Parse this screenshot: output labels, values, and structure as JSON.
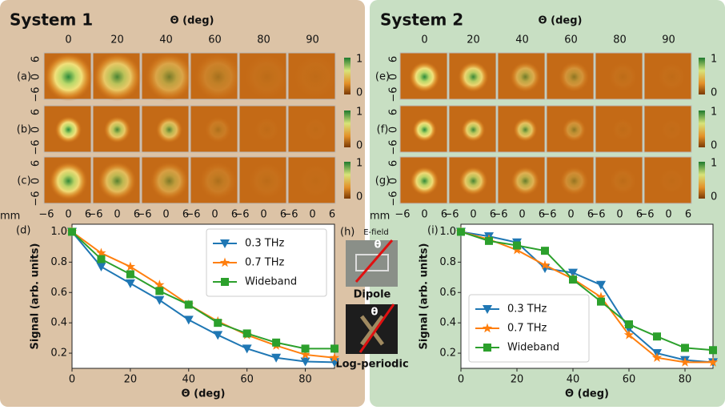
{
  "chart_data": [
    {
      "type": "line",
      "label": "(d)",
      "xlabel": "Θ (deg)",
      "ylabel": "Signal (arb. units)",
      "xlim": [
        0,
        90
      ],
      "ylim": [
        0.1,
        1.05
      ],
      "xticks": [
        0,
        20,
        40,
        60,
        80
      ],
      "yticks": [
        0.2,
        0.4,
        0.6,
        0.8,
        {
          "value": 1,
          "label": "1.0"
        }
      ],
      "legend": "upper right",
      "x": [
        0,
        10,
        20,
        30,
        40,
        50,
        60,
        70,
        80,
        90
      ],
      "series": [
        {
          "name": "0.3 THz",
          "color": "#1f77b4",
          "marker": "v",
          "values": [
            1.0,
            0.77,
            0.66,
            0.55,
            0.42,
            0.32,
            0.23,
            0.17,
            0.145,
            0.14
          ]
        },
        {
          "name": "0.7 THz",
          "color": "#ff7f0e",
          "marker": "*",
          "values": [
            1.0,
            0.86,
            0.77,
            0.65,
            0.52,
            0.41,
            0.32,
            0.25,
            0.19,
            0.17
          ]
        },
        {
          "name": "Wideband",
          "color": "#2ca02c",
          "marker": "s",
          "values": [
            1.0,
            0.82,
            0.72,
            0.61,
            0.52,
            0.4,
            0.33,
            0.27,
            0.23,
            0.23
          ]
        }
      ]
    },
    {
      "type": "line",
      "label": "(i)",
      "xlabel": "Θ (deg)",
      "ylabel": "Signal (arb. units)",
      "xlim": [
        0,
        90
      ],
      "ylim": [
        0.1,
        1.05
      ],
      "xticks": [
        0,
        20,
        40,
        60,
        80
      ],
      "yticks": [
        0.2,
        0.4,
        0.6,
        0.8,
        {
          "value": 1,
          "label": "1.0"
        }
      ],
      "legend": "lower left",
      "x": [
        0,
        10,
        20,
        30,
        40,
        50,
        60,
        70,
        80,
        90
      ],
      "series": [
        {
          "name": "0.3 THz",
          "color": "#1f77b4",
          "marker": "v",
          "values": [
            1.0,
            0.97,
            0.93,
            0.76,
            0.73,
            0.65,
            0.36,
            0.2,
            0.155,
            0.14
          ]
        },
        {
          "name": "0.7 THz",
          "color": "#ff7f0e",
          "marker": "*",
          "values": [
            1.0,
            0.95,
            0.88,
            0.78,
            0.69,
            0.57,
            0.32,
            0.17,
            0.14,
            0.14
          ]
        },
        {
          "name": "Wideband",
          "color": "#2ca02c",
          "marker": "s",
          "values": [
            1.0,
            0.94,
            0.91,
            0.875,
            0.685,
            0.54,
            0.39,
            0.31,
            0.235,
            0.22
          ]
        }
      ]
    }
  ],
  "systems": [
    {
      "title": "System 1",
      "axis_title": "Θ (deg)",
      "angles": [
        "0",
        "20",
        "40",
        "60",
        "80",
        "90"
      ],
      "rows": [
        "(a)",
        "(b)",
        "(c)"
      ]
    },
    {
      "title": "System 2",
      "axis_title": "Θ (deg)",
      "angles": [
        "0",
        "20",
        "40",
        "60",
        "80",
        "90"
      ],
      "rows": [
        "(e)",
        "(f)",
        "(g)"
      ]
    }
  ],
  "image_axis": {
    "ticks": [
      "6",
      "0",
      "−6"
    ],
    "unit": "mm"
  },
  "colorbar_ticks": [
    "1",
    "0"
  ],
  "inset": {
    "label": "(h)",
    "efield": "E-field",
    "theta": "θ",
    "dipole": "Dipole",
    "log_periodic": "Log-periodic"
  }
}
